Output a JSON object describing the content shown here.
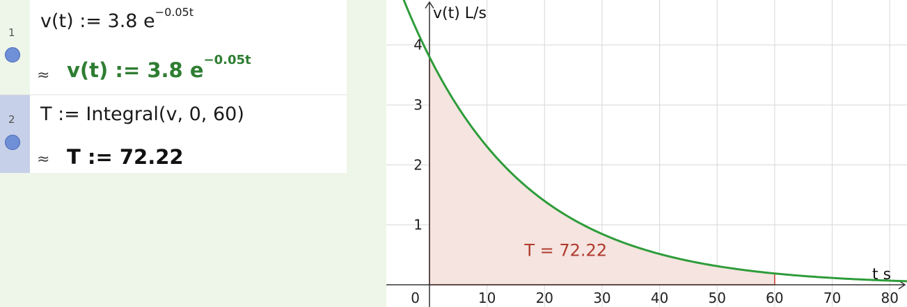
{
  "algebra": {
    "rows": [
      {
        "number": "1",
        "input_base": "v(t) :=  3.8 e",
        "input_exp": "−0.05t",
        "approx": "≈",
        "output_base": "v(t)  :=  3.8 e",
        "output_exp": "−0.05t"
      },
      {
        "number": "2",
        "input_text": "T :=  Integral(v, 0, 60)",
        "approx": "≈",
        "output_text": "T  :=  72.22"
      }
    ]
  },
  "graph": {
    "y_axis_label": "v(t) L/s",
    "x_axis_label": "t s",
    "area_label": "T = 72.22",
    "x_ticks": [
      "10",
      "20",
      "30",
      "40",
      "50",
      "60",
      "70",
      "80"
    ],
    "y_ticks": [
      "1",
      "2",
      "3",
      "4"
    ],
    "origin_label": "0",
    "colors": {
      "curve": "#2e9c3a",
      "area_fill": "#f5e4df",
      "area_edge": "#c0392b",
      "grid": "#d7d7d7",
      "axis": "#333333"
    }
  },
  "chart_data": {
    "type": "line",
    "function": "v(t) = 3.8 e^(-0.05t)",
    "coefficient": 3.8,
    "rate": -0.05,
    "shaded_interval": [
      0,
      60
    ],
    "integral_value": 72.22,
    "xlabel": "t s",
    "ylabel": "v(t) L/s",
    "xlim": [
      -7.5,
      83
    ],
    "ylim": [
      -0.37,
      4.75
    ],
    "grid": true
  }
}
